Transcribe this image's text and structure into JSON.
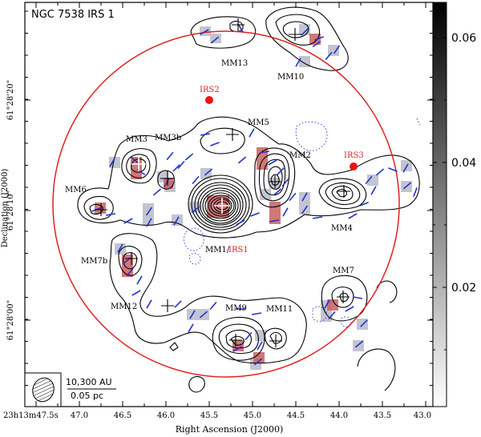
{
  "title": "NGC 7538 IRS 1",
  "xlabel": "Right Ascension (J2000)",
  "ylabel": "Declination (J2000)",
  "scalebar": {
    "au": "10,300 AU",
    "pc": "0.05 pc"
  },
  "x_ticks": [
    "23h13m47.5s",
    "47.0",
    "46.5",
    "46.0",
    "45.5",
    "45.0",
    "44.5",
    "44.0",
    "43.5",
    "43.0"
  ],
  "y_ticks": [
    "61°28'20\"",
    "61°28'10\"",
    "61°28'00\""
  ],
  "colorbar": {
    "ticks": [
      "0.06",
      "0.04",
      "0.02"
    ],
    "range": [
      0,
      0.065
    ]
  },
  "sources_black": [
    {
      "name": "MM1",
      "label": "MM1/"
    },
    {
      "name": "MM2",
      "label": "MM2"
    },
    {
      "name": "MM3",
      "label": "MM3"
    },
    {
      "name": "MM3b",
      "label": "MM3b"
    },
    {
      "name": "MM4",
      "label": "MM4"
    },
    {
      "name": "MM5",
      "label": "MM5"
    },
    {
      "name": "MM6",
      "label": "MM6"
    },
    {
      "name": "MM7",
      "label": "MM7"
    },
    {
      "name": "MM7b",
      "label": "MM7b"
    },
    {
      "name": "MM9",
      "label": "MM9"
    },
    {
      "name": "MM10",
      "label": "MM10"
    },
    {
      "name": "MM11",
      "label": "MM11"
    },
    {
      "name": "MM12",
      "label": "MM12"
    },
    {
      "name": "MM13",
      "label": "MM13"
    }
  ],
  "sources_red": [
    {
      "name": "IRS1",
      "label": "IRS1"
    },
    {
      "name": "IRS2",
      "label": "IRS2"
    },
    {
      "name": "IRS3",
      "label": "IRS3"
    }
  ],
  "colors": {
    "contour": "#000000",
    "circle": "#e02020",
    "vector": "#2233cc",
    "pixel_gray": "#b8bcc8",
    "pixel_red": "#c86060",
    "irs_marker": "#ee1111",
    "dotted": "#3344dd"
  }
}
